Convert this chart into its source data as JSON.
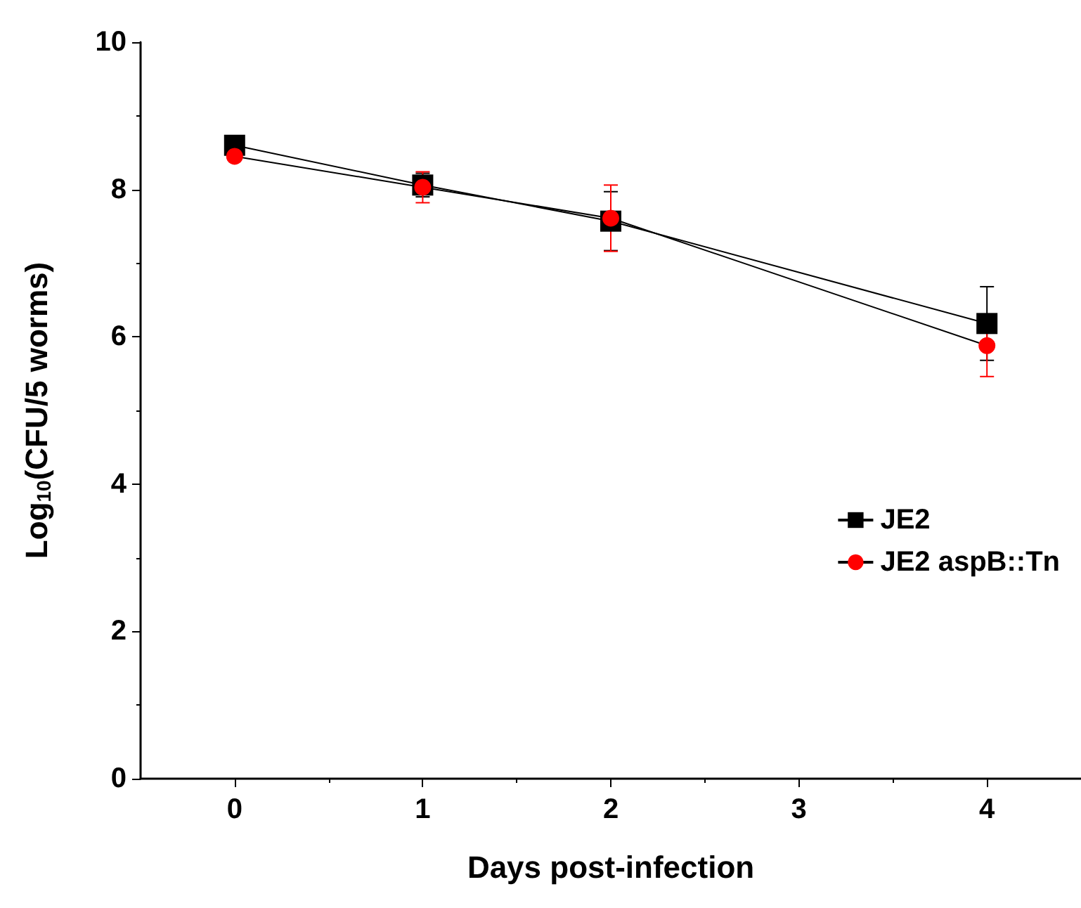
{
  "chart_data": {
    "type": "line",
    "xlabel": "Days post-infection",
    "ylabel": "Log$_{10}$(CFU/5 worms)",
    "x": [
      0,
      1,
      2,
      4
    ],
    "xlim": [
      -0.5,
      4.5
    ],
    "xticks": [
      0,
      1,
      2,
      3,
      4
    ],
    "ylim": [
      0,
      10
    ],
    "yticks": [
      0,
      2,
      4,
      6,
      8,
      10
    ],
    "grid": false,
    "legend": "right",
    "series": [
      {
        "name": "JE2",
        "color": "#000000",
        "marker": "square",
        "values": [
          8.6,
          8.06,
          7.57,
          6.18
        ],
        "errors": [
          0.1,
          0.16,
          0.4,
          0.5
        ]
      },
      {
        "name": "JE2 aspB::Tn",
        "color": "#ff0000",
        "marker": "circle",
        "values": [
          8.45,
          8.03,
          7.61,
          5.88
        ],
        "errors": [
          0.05,
          0.21,
          0.45,
          0.42
        ]
      }
    ]
  }
}
